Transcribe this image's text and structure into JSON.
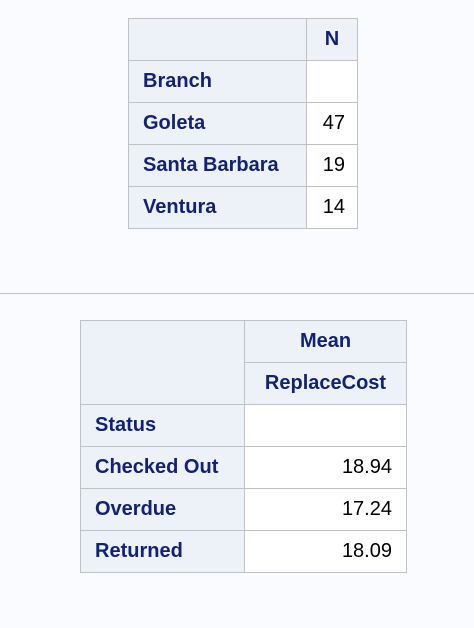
{
  "table1": {
    "column_header": "N",
    "row_group_label": "Branch",
    "rows": [
      {
        "label": "Goleta",
        "value": "47"
      },
      {
        "label": "Santa Barbara",
        "value": "19"
      },
      {
        "label": "Ventura",
        "value": "14"
      }
    ]
  },
  "table2": {
    "statistic_header": "Mean",
    "variable_header": "ReplaceCost",
    "row_group_label": "Status",
    "rows": [
      {
        "label": "Checked Out",
        "value": "18.94"
      },
      {
        "label": "Overdue",
        "value": "17.24"
      },
      {
        "label": "Returned",
        "value": "18.09"
      }
    ]
  },
  "colors": {
    "header_background": "#edf2f9",
    "header_text": "#112277",
    "cell_background": "#ffffff",
    "border": "#c1c1c1",
    "page_background": "#fafbfe"
  }
}
